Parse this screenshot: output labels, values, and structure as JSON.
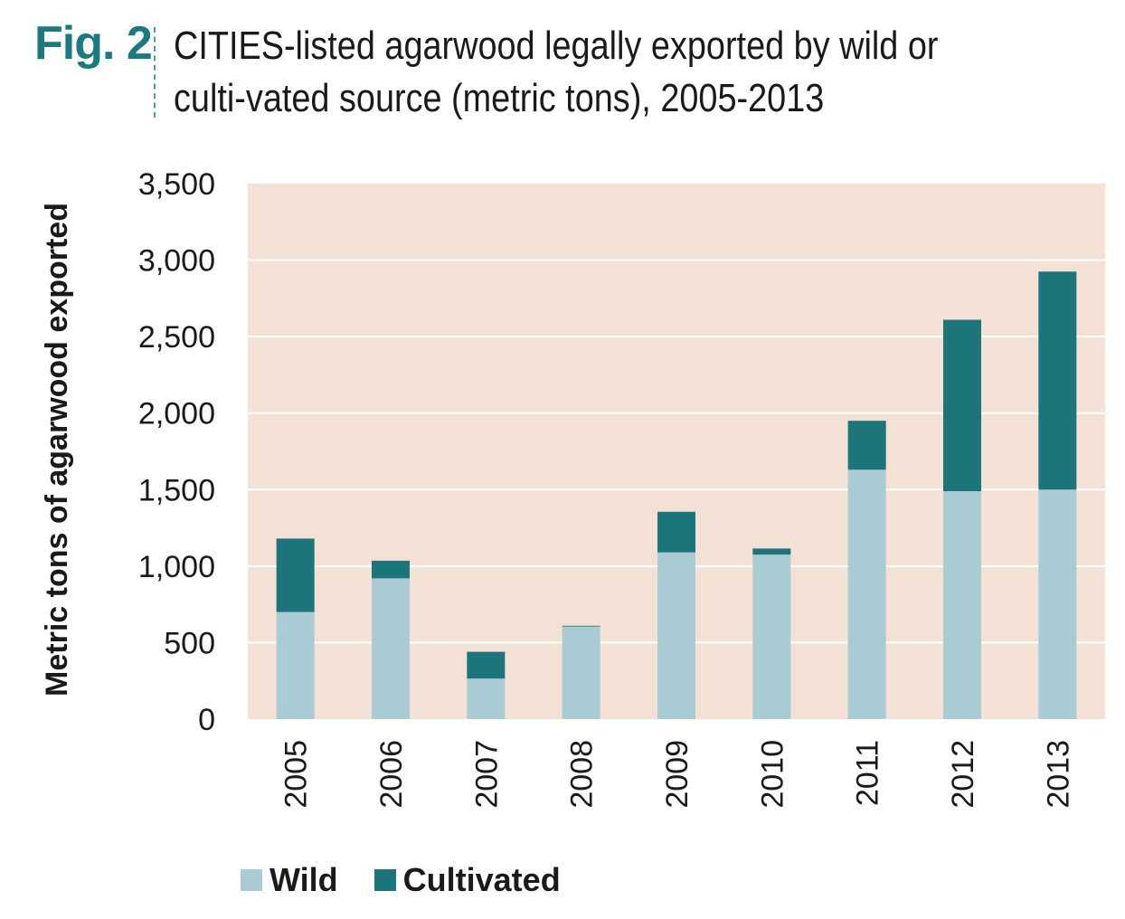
{
  "figure": {
    "label": "Fig. 2",
    "title": "CITIES-listed agarwood legally exported by wild or culti-vated source (metric tons), 2005-2013"
  },
  "colors": {
    "wild": "#a8cbd4",
    "cultivated": "#1b757b",
    "plot_background": "#f3e1d5",
    "gridline": "#ffffff",
    "figure_label": "#1b7a7e"
  },
  "chart_data": {
    "type": "bar",
    "stacked": true,
    "categories": [
      "2005",
      "2006",
      "2007",
      "2008",
      "2009",
      "2010",
      "2011",
      "2012",
      "2013"
    ],
    "series": [
      {
        "name": "Wild",
        "values": [
          700,
          920,
          265,
          605,
          1090,
          1075,
          1630,
          1490,
          1500
        ]
      },
      {
        "name": "Cultivated",
        "values": [
          480,
          115,
          175,
          5,
          265,
          40,
          320,
          1120,
          1425
        ]
      }
    ],
    "ylabel": "Metric tons of agarwood exported",
    "xlabel": "",
    "ylim": [
      0,
      3500
    ],
    "yticks": [
      0,
      500,
      1000,
      1500,
      2000,
      2500,
      3000,
      3500
    ],
    "ytick_labels": [
      "0",
      "500",
      "1,000",
      "1,500",
      "2,000",
      "2,500",
      "3,000",
      "3,500"
    ],
    "grid": true,
    "legend_position": "bottom-left"
  }
}
